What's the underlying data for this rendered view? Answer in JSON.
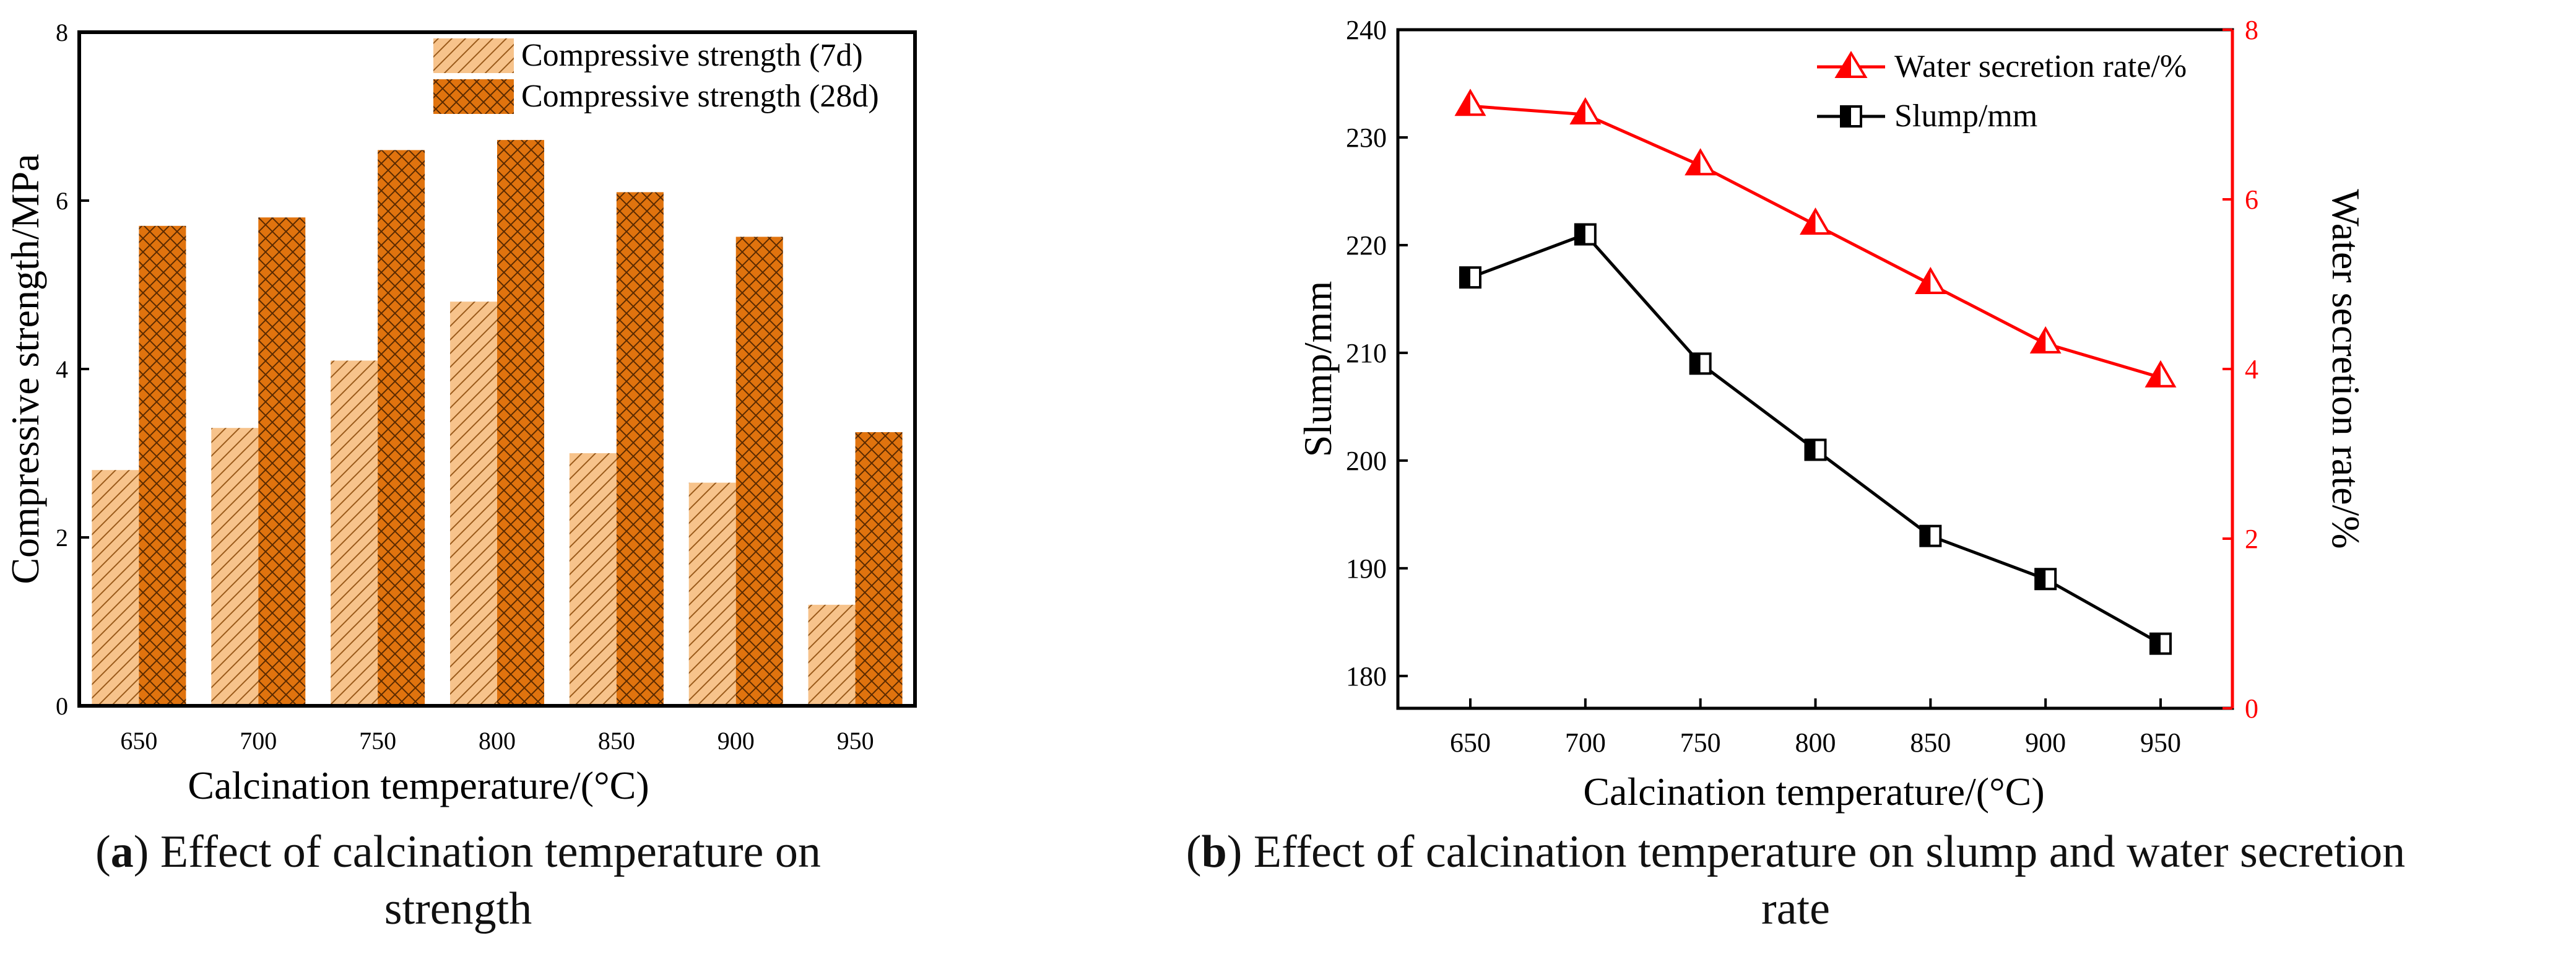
{
  "chart_data": [
    {
      "type": "bar",
      "panel": "a",
      "title": "",
      "xlabel": "Calcination temperature/(°C)",
      "ylabel": "Compressive strength/MPa",
      "categories": [
        "650",
        "700",
        "750",
        "800",
        "850",
        "900",
        "950"
      ],
      "ylim": [
        0,
        8
      ],
      "yticks": [
        "0",
        "2",
        "4",
        "6",
        "8"
      ],
      "legend_position": "top-right",
      "series": [
        {
          "name": "Compressive strength (7d)",
          "values": [
            2.8,
            3.3,
            4.1,
            4.8,
            3.0,
            2.65,
            1.2
          ],
          "color": "#f7c38b",
          "pattern": "diagonal hatch"
        },
        {
          "name": "Compressive strength (28d)",
          "values": [
            5.7,
            5.8,
            6.6,
            6.72,
            6.1,
            5.57,
            3.25
          ],
          "color": "#e0730e",
          "pattern": "cross hatch"
        }
      ],
      "grid": false
    },
    {
      "type": "line",
      "panel": "b",
      "title": "",
      "xlabel": "Calcination temperature/(°C)",
      "ylabel_left": "Slump/mm",
      "ylabel_right": "Water secretion rate/%",
      "x": [
        650,
        700,
        750,
        800,
        850,
        900,
        950
      ],
      "xticks": [
        "650",
        "700",
        "750",
        "800",
        "850",
        "900",
        "950"
      ],
      "ylim_left": [
        177,
        240
      ],
      "yticks_left": [
        "180",
        "190",
        "200",
        "210",
        "220",
        "230",
        "240"
      ],
      "ylim_right": [
        0,
        8
      ],
      "yticks_right": [
        "0",
        "2",
        "4",
        "6",
        "8"
      ],
      "legend_position": "top-right",
      "series": [
        {
          "name": "Water secretion rate/%",
          "axis": "right",
          "color": "#ff0000",
          "marker": "half-filled triangle",
          "values": [
            7.1,
            7.0,
            6.4,
            5.7,
            5.0,
            4.3,
            3.9
          ]
        },
        {
          "name": "Slump/mm",
          "axis": "left",
          "color": "#000000",
          "marker": "half-filled square",
          "values": [
            217,
            221,
            209,
            201,
            193,
            189,
            183
          ]
        }
      ],
      "grid": false
    }
  ],
  "captions": {
    "a": {
      "label": "a",
      "line1": "Effect of calcination temperature on",
      "line2": "strength"
    },
    "b": {
      "label": "b",
      "line1": "Effect of calcination temperature on slump and water secretion",
      "line2": "rate"
    }
  }
}
